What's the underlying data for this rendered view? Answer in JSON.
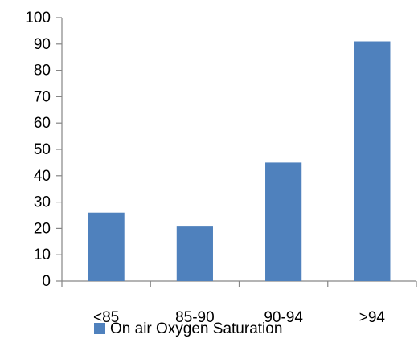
{
  "chart_data": {
    "type": "bar",
    "categories": [
      "<85",
      "85-90",
      "90-94",
      ">94"
    ],
    "series": [
      {
        "name": "On air Oxygen Saturation",
        "values": [
          26,
          21,
          45,
          91
        ],
        "color": "#4F81BD"
      }
    ],
    "title": "",
    "xlabel": "",
    "ylabel": "",
    "ylim": [
      0,
      100
    ],
    "yticks": [
      0,
      10,
      20,
      30,
      40,
      50,
      60,
      70,
      80,
      90,
      100
    ],
    "grid": false,
    "legend": "bottom-center"
  }
}
